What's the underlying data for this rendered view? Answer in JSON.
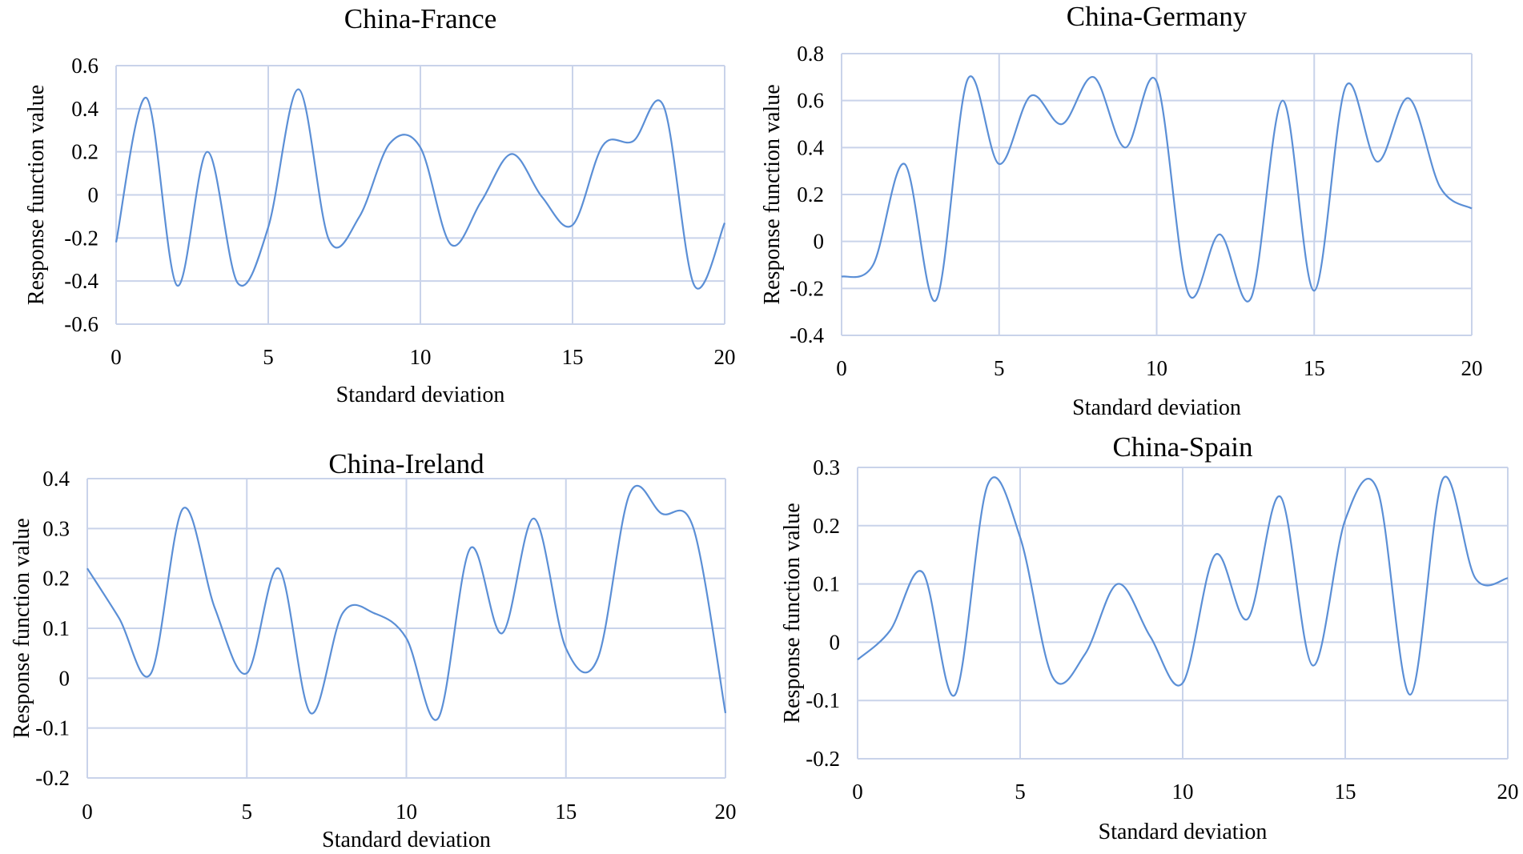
{
  "chart_data": [
    {
      "type": "line",
      "title": "China-France",
      "xlabel": "Standard deviation",
      "ylabel": "Response function value",
      "xlim": [
        0,
        20
      ],
      "ylim": [
        -0.6,
        0.6
      ],
      "x_ticks": [
        0,
        5,
        10,
        15,
        20
      ],
      "y_ticks": [
        -0.6,
        -0.4,
        -0.2,
        0,
        0.2,
        0.4,
        0.6
      ],
      "grid": true,
      "smooth": true,
      "series": [
        {
          "x": [
            0,
            1,
            2,
            3,
            4,
            5,
            6,
            7,
            8,
            9,
            10,
            11,
            12,
            13,
            14,
            15,
            16,
            17,
            18,
            19,
            20
          ],
          "y": [
            -0.22,
            0.45,
            -0.42,
            0.2,
            -0.41,
            -0.15,
            0.49,
            -0.21,
            -0.1,
            0.24,
            0.22,
            -0.23,
            -0.03,
            0.19,
            -0.01,
            -0.14,
            0.23,
            0.25,
            0.41,
            -0.42,
            -0.13
          ]
        }
      ]
    },
    {
      "type": "line",
      "title": "China-Germany",
      "xlabel": "Standard deviation",
      "ylabel": "Response function value",
      "xlim": [
        0,
        20
      ],
      "ylim": [
        -0.4,
        0.8
      ],
      "x_ticks": [
        0,
        5,
        10,
        15,
        20
      ],
      "y_ticks": [
        -0.4,
        -0.2,
        0,
        0.2,
        0.4,
        0.6,
        0.8
      ],
      "grid": true,
      "smooth": true,
      "series": [
        {
          "x": [
            0,
            1,
            2,
            3,
            4,
            5,
            6,
            7,
            8,
            9,
            10,
            11,
            12,
            13,
            14,
            15,
            16,
            17,
            18,
            19,
            20
          ],
          "y": [
            -0.15,
            -0.1,
            0.33,
            -0.25,
            0.69,
            0.33,
            0.62,
            0.5,
            0.7,
            0.4,
            0.68,
            -0.22,
            0.03,
            -0.24,
            0.6,
            -0.21,
            0.66,
            0.34,
            0.61,
            0.23,
            0.14
          ]
        }
      ]
    },
    {
      "type": "line",
      "title": "China-Ireland",
      "xlabel": "Standard deviation",
      "ylabel": "Response function value",
      "xlim": [
        0,
        20
      ],
      "ylim": [
        -0.2,
        0.4
      ],
      "x_ticks": [
        0,
        5,
        10,
        15,
        20
      ],
      "y_ticks": [
        -0.2,
        -0.1,
        0,
        0.1,
        0.2,
        0.3,
        0.4
      ],
      "grid": true,
      "smooth": true,
      "series": [
        {
          "x": [
            0,
            1,
            2,
            3,
            4,
            5,
            6,
            7,
            8,
            9,
            10,
            11,
            12,
            13,
            14,
            15,
            16,
            17,
            18,
            19,
            20
          ],
          "y": [
            0.22,
            0.12,
            0.01,
            0.34,
            0.14,
            0.01,
            0.22,
            -0.07,
            0.13,
            0.13,
            0.08,
            -0.08,
            0.26,
            0.09,
            0.32,
            0.06,
            0.04,
            0.37,
            0.33,
            0.3,
            -0.07
          ]
        }
      ]
    },
    {
      "type": "line",
      "title": "China-Spain",
      "xlabel": "Standard deviation",
      "ylabel": "Response function value",
      "xlim": [
        0,
        20
      ],
      "ylim": [
        -0.2,
        0.3
      ],
      "x_ticks": [
        0,
        5,
        10,
        15,
        20
      ],
      "y_ticks": [
        -0.2,
        -0.1,
        0,
        0.1,
        0.2,
        0.3
      ],
      "grid": true,
      "smooth": true,
      "series": [
        {
          "x": [
            0,
            1,
            2,
            3,
            4,
            5,
            6,
            7,
            8,
            9,
            10,
            11,
            12,
            13,
            14,
            15,
            16,
            17,
            18,
            19,
            20
          ],
          "y": [
            -0.03,
            0.02,
            0.12,
            -0.09,
            0.27,
            0.18,
            -0.06,
            -0.02,
            0.1,
            0.01,
            -0.07,
            0.15,
            0.04,
            0.25,
            -0.04,
            0.21,
            0.26,
            -0.09,
            0.28,
            0.11,
            0.11
          ]
        }
      ]
    }
  ]
}
